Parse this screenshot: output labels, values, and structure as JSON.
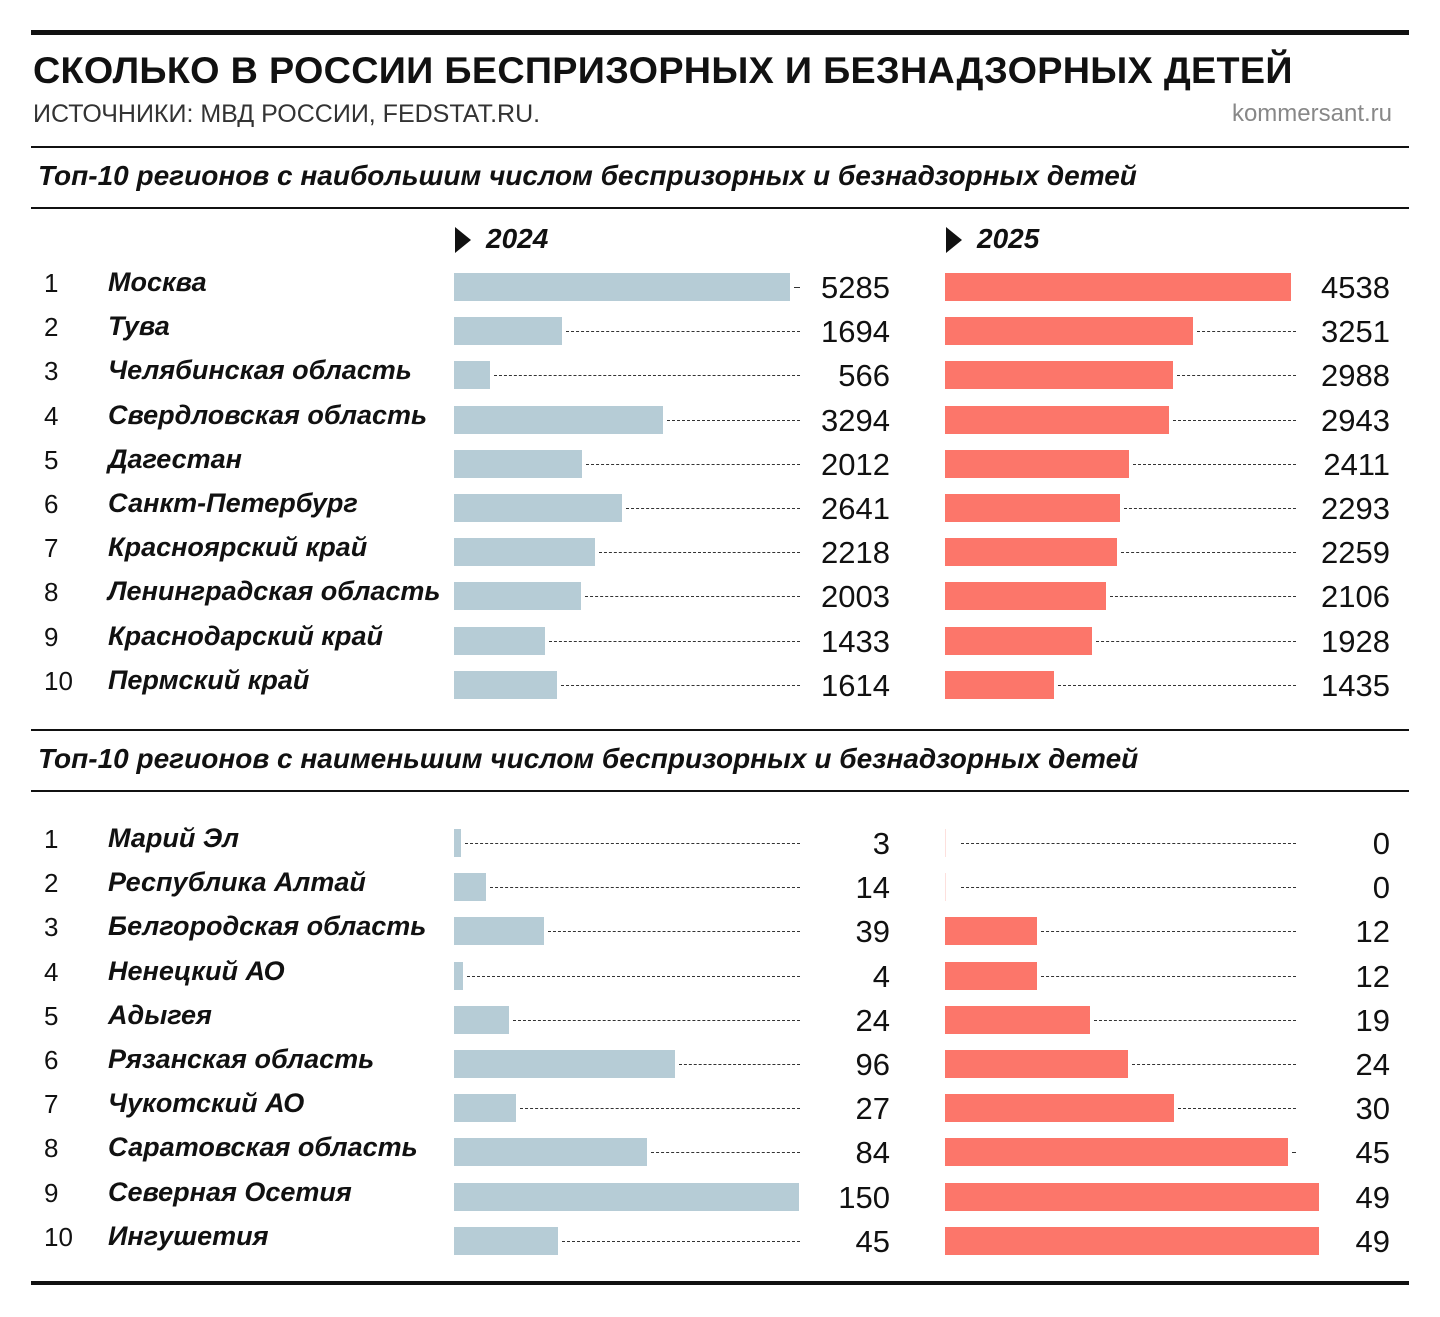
{
  "header": {
    "title": "СКОЛЬКО В РОССИИ БЕСПРИЗОРНЫХ И БЕЗНАДЗОРНЫХ ДЕТЕЙ",
    "source": "ИСТОЧНИКИ: МВД РОССИИ, FEDSTAT.RU.",
    "brand": "kommersant.ru"
  },
  "colors": {
    "y2024": "#b6ccd6",
    "y2025": "#fc766a"
  },
  "chart_data": [
    {
      "type": "bar",
      "title": "Топ-10 регионов с наибольшим числом беспризорных и безнадзорных детей",
      "ranks": [
        "1",
        "2",
        "3",
        "4",
        "5",
        "6",
        "7",
        "8",
        "9",
        "10"
      ],
      "categories": [
        "Москва",
        "Тува",
        "Челябинская область",
        "Свердловская область",
        "Дагестан",
        "Санкт-Петербург",
        "Красноярский край",
        "Ленинградская область",
        "Краснодарский край",
        "Пермский край"
      ],
      "series": [
        {
          "name": "2024",
          "values": [
            5285,
            1694,
            566,
            3294,
            2012,
            2641,
            2218,
            2003,
            1433,
            1614
          ]
        },
        {
          "name": "2025",
          "values": [
            4538,
            3251,
            2988,
            2943,
            2411,
            2293,
            2259,
            2106,
            1928,
            1435
          ]
        }
      ]
    },
    {
      "type": "bar",
      "title": "Топ-10 регионов с наименьшим числом беспризорных и безнадзорных детей",
      "ranks": [
        "1",
        "2",
        "3",
        "4",
        "5",
        "6",
        "7",
        "8",
        "9",
        "10"
      ],
      "categories": [
        "Марий Эл",
        "Республика Алтай",
        "Белгородская область",
        "Ненецкий АО",
        "Адыгея",
        "Рязанская область",
        "Чукотский АО",
        "Саратовская область",
        "Северная Осетия",
        "Ингушетия"
      ],
      "series": [
        {
          "name": "2024",
          "values": [
            3,
            14,
            39,
            4,
            24,
            96,
            27,
            84,
            150,
            45
          ]
        },
        {
          "name": "2025",
          "values": [
            0,
            0,
            12,
            12,
            19,
            24,
            30,
            45,
            49,
            49
          ]
        }
      ]
    }
  ]
}
